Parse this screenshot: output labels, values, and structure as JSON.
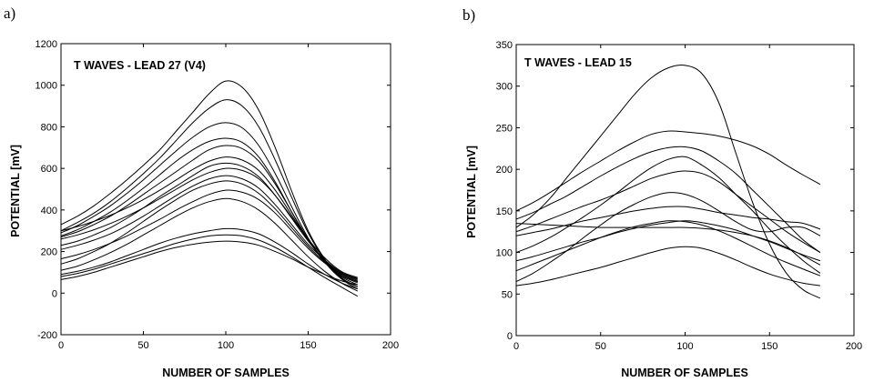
{
  "panels": [
    {
      "label": "a)"
    },
    {
      "label": "b)"
    }
  ],
  "chart_data": [
    {
      "type": "line",
      "title": "T WAVES - LEAD 27 (V4)",
      "xlabel": "NUMBER OF SAMPLES",
      "ylabel": "POTENTIAL [mV]",
      "xlim": [
        0,
        200
      ],
      "ylim": [
        -200,
        1200
      ],
      "xticks": [
        "0",
        "50",
        "100",
        "150",
        "200"
      ],
      "yticks": [
        "-200",
        "0",
        "200",
        "400",
        "600",
        "800",
        "1000",
        "1200"
      ],
      "x": [
        0,
        10,
        20,
        30,
        40,
        50,
        60,
        70,
        80,
        90,
        100,
        110,
        120,
        130,
        140,
        150,
        160,
        170,
        180
      ],
      "series": [
        {
          "values": [
            330,
            370,
            420,
            480,
            545,
            615,
            690,
            780,
            870,
            960,
            1020,
            990,
            880,
            700,
            490,
            300,
            165,
            70,
            20
          ]
        },
        {
          "values": [
            300,
            340,
            385,
            440,
            505,
            575,
            650,
            735,
            820,
            890,
            930,
            900,
            800,
            640,
            460,
            290,
            160,
            75,
            30
          ]
        },
        {
          "values": [
            290,
            325,
            370,
            420,
            480,
            545,
            615,
            685,
            750,
            800,
            820,
            795,
            710,
            575,
            415,
            265,
            150,
            70,
            30
          ]
        },
        {
          "values": [
            275,
            305,
            345,
            390,
            445,
            505,
            570,
            635,
            690,
            730,
            745,
            725,
            655,
            535,
            390,
            255,
            150,
            80,
            40
          ]
        },
        {
          "values": [
            270,
            295,
            330,
            370,
            420,
            475,
            530,
            585,
            640,
            690,
            710,
            695,
            635,
            525,
            390,
            260,
            155,
            85,
            50
          ]
        },
        {
          "values": [
            300,
            320,
            345,
            375,
            410,
            450,
            495,
            545,
            595,
            635,
            655,
            640,
            590,
            495,
            375,
            255,
            160,
            90,
            55
          ]
        },
        {
          "values": [
            230,
            250,
            280,
            315,
            360,
            410,
            465,
            515,
            565,
            610,
            625,
            610,
            560,
            470,
            360,
            250,
            160,
            100,
            70
          ]
        },
        {
          "values": [
            260,
            280,
            305,
            335,
            370,
            410,
            455,
            500,
            545,
            580,
            600,
            590,
            550,
            470,
            365,
            260,
            170,
            105,
            75
          ]
        },
        {
          "values": [
            210,
            230,
            255,
            285,
            325,
            370,
            420,
            470,
            515,
            550,
            565,
            550,
            505,
            425,
            330,
            235,
            160,
            100,
            65
          ]
        },
        {
          "values": [
            140,
            165,
            200,
            240,
            290,
            345,
            400,
            450,
            495,
            525,
            540,
            525,
            480,
            405,
            315,
            225,
            150,
            95,
            60
          ]
        },
        {
          "values": [
            165,
            185,
            210,
            240,
            275,
            315,
            355,
            400,
            440,
            475,
            495,
            485,
            450,
            385,
            300,
            215,
            145,
            90,
            55
          ]
        },
        {
          "values": [
            110,
            130,
            160,
            195,
            235,
            280,
            325,
            370,
            410,
            440,
            455,
            440,
            400,
            335,
            255,
            175,
            105,
            50,
            10
          ]
        },
        {
          "values": [
            90,
            105,
            125,
            150,
            180,
            210,
            240,
            265,
            285,
            300,
            310,
            305,
            285,
            245,
            195,
            140,
            90,
            50,
            20
          ]
        },
        {
          "values": [
            80,
            95,
            115,
            140,
            165,
            190,
            215,
            240,
            260,
            275,
            280,
            275,
            255,
            220,
            175,
            125,
            75,
            30,
            -15
          ]
        },
        {
          "values": [
            65,
            80,
            100,
            125,
            150,
            175,
            200,
            220,
            235,
            245,
            250,
            245,
            230,
            200,
            165,
            125,
            90,
            60,
            40
          ]
        }
      ]
    },
    {
      "type": "line",
      "title": "T WAVES - LEAD 15",
      "xlabel": "NUMBER OF SAMPLES",
      "ylabel": "POTENTIAL [mV]",
      "xlim": [
        0,
        200
      ],
      "ylim": [
        0,
        350
      ],
      "xticks": [
        "0",
        "50",
        "100",
        "150",
        "200"
      ],
      "yticks": [
        "0",
        "50",
        "100",
        "150",
        "200",
        "250",
        "300",
        "350"
      ],
      "x": [
        0,
        10,
        20,
        30,
        40,
        50,
        60,
        70,
        80,
        90,
        100,
        110,
        120,
        130,
        140,
        150,
        160,
        170,
        180
      ],
      "series": [
        {
          "values": [
            130,
            145,
            165,
            190,
            215,
            240,
            265,
            290,
            310,
            322,
            325,
            315,
            280,
            220,
            160,
            110,
            75,
            55,
            45
          ]
        },
        {
          "values": [
            150,
            160,
            172,
            185,
            198,
            210,
            222,
            233,
            242,
            246,
            245,
            243,
            240,
            235,
            228,
            218,
            205,
            193,
            182
          ]
        },
        {
          "values": [
            140,
            148,
            158,
            168,
            180,
            192,
            203,
            213,
            221,
            226,
            227,
            222,
            210,
            195,
            175,
            155,
            135,
            115,
            100
          ]
        },
        {
          "values": [
            100,
            108,
            118,
            130,
            143,
            157,
            172,
            188,
            202,
            212,
            215,
            205,
            190,
            170,
            150,
            128,
            108,
            90,
            75
          ]
        },
        {
          "values": [
            125,
            132,
            140,
            148,
            156,
            163,
            171,
            180,
            189,
            195,
            198,
            195,
            185,
            170,
            155,
            140,
            125,
            112,
            100
          ]
        },
        {
          "values": [
            65,
            75,
            88,
            102,
            118,
            133,
            147,
            158,
            167,
            172,
            170,
            162,
            150,
            137,
            127,
            125,
            130,
            130,
            120
          ]
        },
        {
          "values": [
            120,
            124,
            128,
            133,
            138,
            142,
            146,
            150,
            153,
            155,
            155,
            152,
            148,
            145,
            142,
            140,
            137,
            135,
            128
          ]
        },
        {
          "values": [
            90,
            95,
            101,
            107,
            113,
            118,
            124,
            129,
            133,
            136,
            138,
            136,
            132,
            127,
            120,
            113,
            105,
            97,
            90
          ]
        },
        {
          "values": [
            78,
            86,
            94,
            102,
            110,
            118,
            125,
            131,
            135,
            138,
            137,
            133,
            126,
            117,
            107,
            97,
            88,
            80,
            72
          ]
        },
        {
          "values": [
            60,
            63,
            67,
            72,
            77,
            82,
            88,
            94,
            100,
            105,
            107,
            105,
            99,
            91,
            82,
            74,
            68,
            63,
            60
          ]
        },
        {
          "values": [
            135,
            134,
            133,
            132,
            131,
            130,
            130,
            130,
            130,
            130,
            130,
            129,
            127,
            124,
            120,
            114,
            106,
            96,
            85
          ]
        }
      ]
    }
  ]
}
